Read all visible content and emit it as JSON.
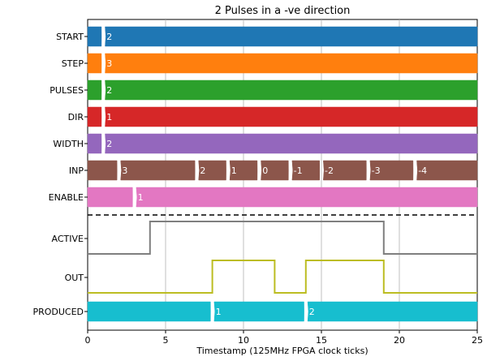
{
  "chart_data": {
    "type": "timing_diagram",
    "title": "2 Pulses in a -ve direction",
    "xlabel": "Timestamp (125MHz FPGA clock ticks)",
    "xlim": [
      0,
      25
    ],
    "xticks": [
      "0",
      "5",
      "10",
      "15",
      "20",
      "25"
    ],
    "grid_x": true,
    "buses": [
      {
        "name": "START",
        "color": "#1f77b4",
        "values": [
          {
            "x": 1,
            "label": "2"
          }
        ]
      },
      {
        "name": "STEP",
        "color": "#ff7f0e",
        "values": [
          {
            "x": 1,
            "label": "3"
          }
        ]
      },
      {
        "name": "PULSES",
        "color": "#2ca02c",
        "values": [
          {
            "x": 1,
            "label": "2"
          }
        ]
      },
      {
        "name": "DIR",
        "color": "#d62728",
        "values": [
          {
            "x": 1,
            "label": "1"
          }
        ]
      },
      {
        "name": "WIDTH",
        "color": "#9467bd",
        "values": [
          {
            "x": 1,
            "label": "2"
          }
        ]
      },
      {
        "name": "INP",
        "color": "#8c564b",
        "values": [
          {
            "x": 2,
            "label": "3"
          },
          {
            "x": 7,
            "label": "2"
          },
          {
            "x": 9,
            "label": "1"
          },
          {
            "x": 11,
            "label": "0"
          },
          {
            "x": 13,
            "label": "-1"
          },
          {
            "x": 15,
            "label": "-2"
          },
          {
            "x": 18,
            "label": "-3"
          },
          {
            "x": 21,
            "label": "-4"
          }
        ]
      },
      {
        "name": "ENABLE",
        "color": "#e377c2",
        "values": [
          {
            "x": 3,
            "label": "1"
          }
        ]
      }
    ],
    "bits": [
      {
        "name": "ACTIVE",
        "color": "#7f7f7f",
        "points": [
          [
            0,
            0
          ],
          [
            4,
            0
          ],
          [
            4,
            1
          ],
          [
            19,
            1
          ],
          [
            19,
            0
          ],
          [
            25,
            0
          ]
        ]
      },
      {
        "name": "OUT",
        "color": "#bcbd22",
        "points": [
          [
            0,
            0
          ],
          [
            8,
            0
          ],
          [
            8,
            1
          ],
          [
            12,
            1
          ],
          [
            12,
            0
          ],
          [
            14,
            0
          ],
          [
            14,
            1
          ],
          [
            19,
            1
          ],
          [
            19,
            0
          ],
          [
            25,
            0
          ]
        ]
      }
    ],
    "output_bus": {
      "name": "PRODUCED",
      "color": "#17becf",
      "values": [
        {
          "x": 8,
          "label": "1"
        },
        {
          "x": 14,
          "label": "2"
        }
      ]
    }
  }
}
